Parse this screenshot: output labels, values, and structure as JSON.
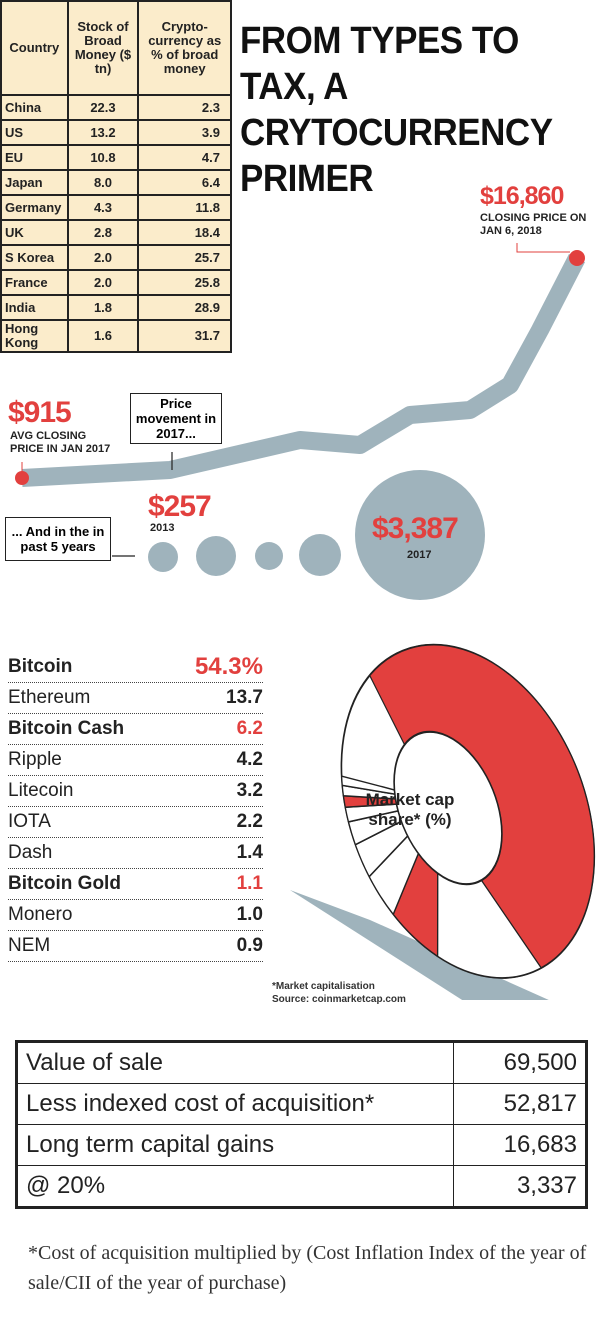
{
  "title": "FROM TYPES TO TAX, A CRYTOCURRENCY PRIMER",
  "colors": {
    "accent": "#e2403e",
    "line": "#9fb3bc",
    "table_bg": "#fbeccb"
  },
  "broad_money": {
    "headers": [
      "Country",
      "Stock of Broad Money ($ tn)",
      "Crypto-currency as % of broad money"
    ],
    "rows": [
      [
        "China",
        "22.3",
        "2.3"
      ],
      [
        "US",
        "13.2",
        "3.9"
      ],
      [
        "EU",
        "10.8",
        "4.7"
      ],
      [
        "Japan",
        "8.0",
        "6.4"
      ],
      [
        "Germany",
        "4.3",
        "11.8"
      ],
      [
        "UK",
        "2.8",
        "18.4"
      ],
      [
        "S Korea",
        "2.0",
        "25.7"
      ],
      [
        "France",
        "2.0",
        "25.8"
      ],
      [
        "India",
        "1.8",
        "28.9"
      ],
      [
        "Hong Kong",
        "1.6",
        "31.7"
      ]
    ]
  },
  "price": {
    "start_value": "$915",
    "start_label": "AVG CLOSING PRICE IN JAN 2017",
    "end_value": "$16,860",
    "end_label": "CLOSING PRICE ON JAN 6, 2018",
    "movement_label": "Price movement in 2017...",
    "years_label": "... And in the in past 5 years",
    "first_year_value": "$257",
    "first_year": "2013",
    "last_year_value": "$3,387",
    "last_year": "2017"
  },
  "chart_data": {
    "type": "pie",
    "title": "Market cap share* (%)",
    "categories": [
      "Bitcoin",
      "Ethereum",
      "Bitcoin Cash",
      "Ripple",
      "Litecoin",
      "IOTA",
      "Dash",
      "Bitcoin Gold",
      "Monero",
      "NEM"
    ],
    "labels": [
      "54.3%",
      "13.7",
      "6.2",
      "4.2",
      "3.2",
      "2.2",
      "1.4",
      "1.1",
      "1.0",
      "0.9"
    ],
    "values": [
      54.3,
      13.7,
      6.2,
      4.2,
      3.2,
      2.2,
      1.4,
      1.1,
      1.0,
      0.9
    ],
    "highlighted": [
      "Bitcoin",
      "Bitcoin Cash",
      "Bitcoin Gold"
    ],
    "footnote": "*Market capitalisation",
    "source": "Source: coinmarketcap.com"
  },
  "tax": {
    "rows": [
      [
        "Value of sale",
        "69,500"
      ],
      [
        "Less indexed cost of acquisition*",
        "52,817"
      ],
      [
        "Long term capital gains",
        "16,683"
      ],
      [
        "@ 20%",
        "3,337"
      ]
    ],
    "footnote": "*Cost of acquisition multiplied by (Cost Inflation Index of the year of sale/CII of the  year of purchase)"
  }
}
